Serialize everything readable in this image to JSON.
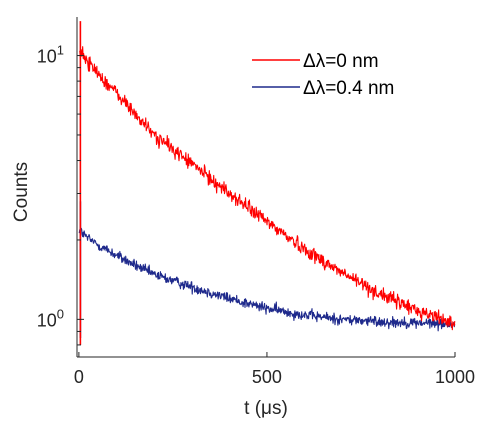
{
  "chart_data": {
    "type": "line",
    "xlabel": "t (μs)",
    "ylabel": "Counts",
    "y_scale": "log",
    "xlim": [
      -5,
      1000
    ],
    "ylim": [
      0.72,
      14
    ],
    "x_ticks": [
      0,
      500,
      1000
    ],
    "x_tick_labels": [
      "0",
      "500",
      "1000"
    ],
    "y_ticks": [
      1,
      10
    ],
    "y_tick_labels": [
      {
        "base": "10",
        "exp": "0"
      },
      {
        "base": "10",
        "exp": "1"
      }
    ],
    "grid": false,
    "legend_position": "top-right",
    "colors": {
      "red": "#ff0000",
      "blue": "#1f2a8c",
      "axis": "#262626"
    },
    "series": [
      {
        "name": "Δλ=0 nm",
        "legend_label": "Δλ=0 nm",
        "color": "#ff0000",
        "spike": {
          "x": 0,
          "y_min": 0.8,
          "y_max": 13.5
        },
        "x": [
          0,
          20,
          50,
          100,
          150,
          200,
          300,
          400,
          500,
          600,
          700,
          800,
          900,
          1000
        ],
        "y": [
          10.5,
          9.6,
          8.6,
          7.2,
          6.0,
          5.0,
          3.9,
          3.0,
          2.35,
          1.85,
          1.5,
          1.25,
          1.08,
          0.97
        ]
      },
      {
        "name": "Δλ=0.4 nm",
        "legend_label": "Δλ=0.4 nm",
        "color": "#1f2a8c",
        "spike": {
          "x": 0,
          "y_min": 0.85,
          "y_max": 2.8
        },
        "x": [
          0,
          20,
          50,
          100,
          150,
          200,
          300,
          400,
          500,
          600,
          700,
          800,
          900,
          1000
        ],
        "y": [
          2.2,
          2.05,
          1.92,
          1.75,
          1.6,
          1.48,
          1.33,
          1.2,
          1.1,
          1.04,
          1.0,
          0.98,
          0.97,
          0.96
        ]
      }
    ]
  }
}
